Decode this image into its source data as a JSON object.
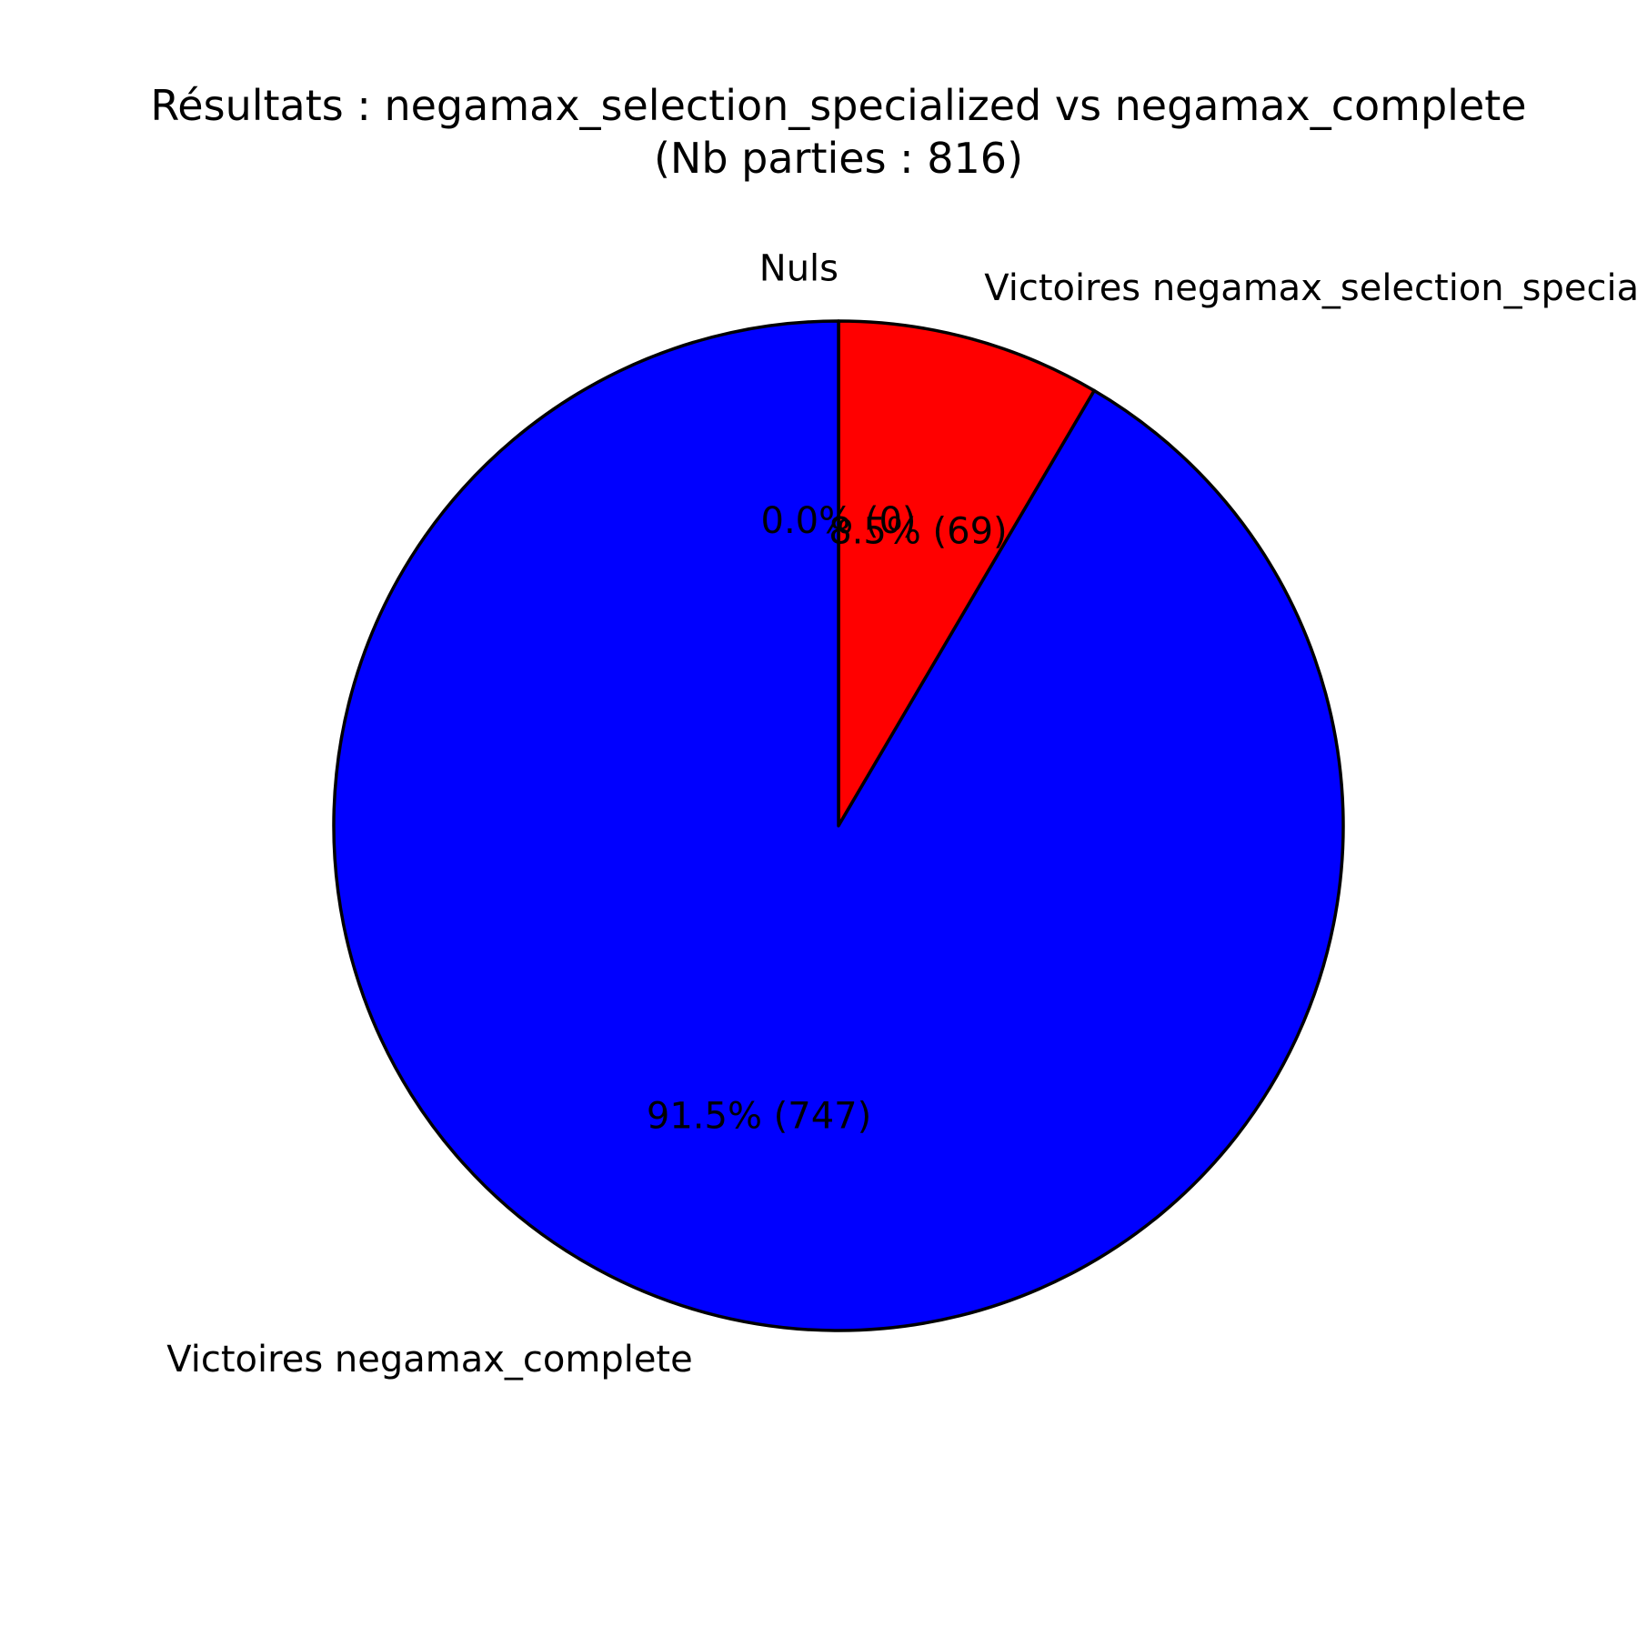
{
  "chart_data": {
    "type": "pie",
    "title": "Résultats : negamax_selection_specialized vs negamax_complete",
    "subtitle": "(Nb parties : 816)",
    "start_angle_deg": 90,
    "direction": "clockwise",
    "slices": [
      {
        "label": "Nuls",
        "value": 0,
        "percent_label": "0.0% (0)",
        "color": "#00ff00"
      },
      {
        "label": "Victoires negamax_selection_specialized",
        "value": 69,
        "percent_label": "8.5% (69)",
        "color": "#ff0000"
      },
      {
        "label": "Victoires negamax_complete",
        "value": 747,
        "percent_label": "91.5% (747)",
        "color": "#0000ff"
      }
    ]
  }
}
